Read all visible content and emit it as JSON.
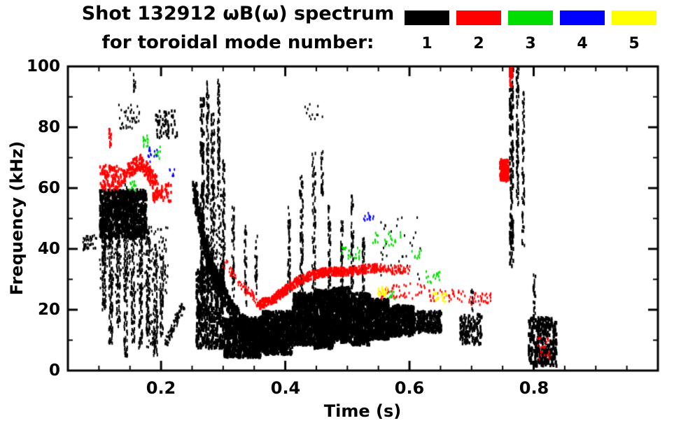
{
  "header": {
    "title": "Shot 132912 ωB(ω) spectrum",
    "subtitle": "for toroidal mode number:"
  },
  "legend": {
    "items": [
      {
        "label": "1",
        "color": "#000000"
      },
      {
        "label": "2",
        "color": "#ff0000"
      },
      {
        "label": "3",
        "color": "#00dd00"
      },
      {
        "label": "4",
        "color": "#0000ff"
      },
      {
        "label": "5",
        "color": "#ffff00"
      }
    ]
  },
  "chart_data": {
    "type": "scatter",
    "title": "Shot 132912 ωB(ω) spectrum for toroidal mode number 1-5",
    "xlabel": "Time (s)",
    "ylabel": "Frequency (kHz)",
    "xlim": [
      0.05,
      1.0
    ],
    "ylim": [
      0,
      100
    ],
    "xticks": [
      0.2,
      0.4,
      0.6,
      0.8
    ],
    "xtick_labels": [
      "0.2",
      "0.4",
      "0.6",
      "0.8"
    ],
    "x_minor_step": 0.05,
    "yticks": [
      0,
      20,
      40,
      60,
      80,
      100
    ],
    "ytick_labels": [
      "0",
      "20",
      "40",
      "60",
      "80",
      "100"
    ],
    "y_minor_step": 10,
    "grid": false,
    "legend_position": "top-right",
    "series": [
      {
        "name": "1",
        "color": "#000000"
      },
      {
        "name": "2",
        "color": "#ff0000"
      },
      {
        "name": "3",
        "color": "#00dd00"
      },
      {
        "name": "4",
        "color": "#0000ff"
      },
      {
        "name": "5",
        "color": "#ffff00"
      }
    ],
    "clusters": [
      {
        "m": 1,
        "sh": "b",
        "t": [
          0.073,
          0.095
        ],
        "f": [
          40,
          45
        ],
        "n": 50,
        "s": 2
      },
      {
        "m": 1,
        "sh": "b",
        "t": [
          0.1,
          0.175
        ],
        "f": [
          44,
          60
        ],
        "n": 800,
        "s": 3
      },
      {
        "m": 1,
        "sh": "v",
        "t": 0.107,
        "w": 0.003,
        "f": [
          20,
          50
        ],
        "n": 90,
        "s": 2
      },
      {
        "m": 1,
        "sh": "v",
        "t": 0.118,
        "w": 0.003,
        "f": [
          8,
          55
        ],
        "n": 120,
        "s": 2
      },
      {
        "m": 1,
        "sh": "v",
        "t": 0.13,
        "w": 0.003,
        "f": [
          15,
          60
        ],
        "n": 110,
        "s": 2
      },
      {
        "m": 1,
        "sh": "v",
        "t": 0.142,
        "w": 0.003,
        "f": [
          5,
          62
        ],
        "n": 130,
        "s": 2
      },
      {
        "m": 1,
        "sh": "v",
        "t": 0.154,
        "w": 0.003,
        "f": [
          10,
          58
        ],
        "n": 120,
        "s": 2
      },
      {
        "m": 1,
        "sh": "v",
        "t": 0.166,
        "w": 0.003,
        "f": [
          8,
          52
        ],
        "n": 110,
        "s": 2
      },
      {
        "m": 1,
        "sh": "v",
        "t": 0.178,
        "w": 0.003,
        "f": [
          12,
          48
        ],
        "n": 90,
        "s": 2
      },
      {
        "m": 1,
        "sh": "v",
        "t": 0.19,
        "w": 0.003,
        "f": [
          5,
          42
        ],
        "n": 80,
        "s": 2
      },
      {
        "m": 1,
        "sh": "v",
        "t": 0.2,
        "w": 0.003,
        "f": [
          12,
          38
        ],
        "n": 60,
        "s": 2
      },
      {
        "m": 1,
        "sh": "b",
        "t": [
          0.1,
          0.21
        ],
        "f": [
          25,
          48
        ],
        "n": 250,
        "s": 2
      },
      {
        "m": 1,
        "sh": "b",
        "t": [
          0.13,
          0.168
        ],
        "f": [
          80,
          88
        ],
        "n": 40,
        "s": 2
      },
      {
        "m": 1,
        "sh": "b",
        "t": [
          0.19,
          0.225
        ],
        "f": [
          77,
          86
        ],
        "n": 60,
        "s": 2.5
      },
      {
        "m": 1,
        "sh": "v",
        "t": 0.156,
        "w": 0.002,
        "f": [
          92,
          98
        ],
        "n": 10,
        "s": 2
      },
      {
        "m": 1,
        "sh": "c",
        "pts": [
          [
            0.205,
            9
          ],
          [
            0.235,
            22
          ]
        ],
        "n": 100,
        "jf": 1.5,
        "s": 2
      },
      {
        "m": 1,
        "sh": "b",
        "t": [
          0.175,
          0.195
        ],
        "f": [
          8,
          20
        ],
        "n": 60,
        "s": 2
      },
      {
        "m": 1,
        "sh": "c",
        "pts": [
          [
            0.252,
            60
          ],
          [
            0.262,
            48
          ],
          [
            0.274,
            38
          ],
          [
            0.288,
            30
          ],
          [
            0.305,
            23
          ],
          [
            0.325,
            17
          ],
          [
            0.345,
            12
          ],
          [
            0.365,
            10
          ],
          [
            0.385,
            10
          ]
        ],
        "n": 900,
        "jf": 3,
        "s": 3
      },
      {
        "m": 1,
        "sh": "b",
        "t": [
          0.255,
          0.3
        ],
        "f": [
          8,
          35
        ],
        "n": 500,
        "s": 3
      },
      {
        "m": 1,
        "sh": "b",
        "t": [
          0.3,
          0.36
        ],
        "f": [
          5,
          18
        ],
        "n": 700,
        "s": 3
      },
      {
        "m": 1,
        "sh": "b",
        "t": [
          0.36,
          0.41
        ],
        "f": [
          6,
          20
        ],
        "n": 650,
        "s": 3
      },
      {
        "m": 1,
        "sh": "b",
        "t": [
          0.41,
          0.445
        ],
        "f": [
          9,
          26
        ],
        "n": 650,
        "s": 3
      },
      {
        "m": 1,
        "sh": "b",
        "t": [
          0.445,
          0.475
        ],
        "f": [
          8,
          27
        ],
        "n": 650,
        "s": 3
      },
      {
        "m": 1,
        "sh": "b",
        "t": [
          0.475,
          0.505
        ],
        "f": [
          10,
          28
        ],
        "n": 650,
        "s": 3
      },
      {
        "m": 1,
        "sh": "b",
        "t": [
          0.505,
          0.535
        ],
        "f": [
          9,
          26
        ],
        "n": 550,
        "s": 3
      },
      {
        "m": 1,
        "sh": "b",
        "t": [
          0.535,
          0.565
        ],
        "f": [
          11,
          24
        ],
        "n": 450,
        "s": 3
      },
      {
        "m": 1,
        "sh": "b",
        "t": [
          0.565,
          0.605
        ],
        "f": [
          12,
          22
        ],
        "n": 380,
        "s": 3
      },
      {
        "m": 1,
        "sh": "b",
        "t": [
          0.605,
          0.65
        ],
        "f": [
          13,
          20
        ],
        "n": 300,
        "s": 2.5
      },
      {
        "m": 1,
        "sh": "b",
        "t": [
          0.27,
          0.3
        ],
        "f": [
          35,
          60
        ],
        "n": 120,
        "s": 2
      },
      {
        "m": 1,
        "sh": "v",
        "t": 0.265,
        "w": 0.003,
        "f": [
          20,
          90
        ],
        "n": 160,
        "s": 2.5
      },
      {
        "m": 1,
        "sh": "v",
        "t": 0.274,
        "w": 0.002,
        "f": [
          55,
          96
        ],
        "n": 90,
        "s": 2
      },
      {
        "m": 1,
        "sh": "v",
        "t": 0.282,
        "w": 0.003,
        "f": [
          30,
          85
        ],
        "n": 120,
        "s": 2
      },
      {
        "m": 1,
        "sh": "v",
        "t": 0.292,
        "w": 0.002,
        "f": [
          60,
          97
        ],
        "n": 70,
        "s": 2
      },
      {
        "m": 1,
        "sh": "v",
        "t": 0.3,
        "w": 0.002,
        "f": [
          28,
          70
        ],
        "n": 80,
        "s": 2
      },
      {
        "m": 1,
        "sh": "v",
        "t": 0.315,
        "w": 0.002,
        "f": [
          25,
          55
        ],
        "n": 50,
        "s": 2
      },
      {
        "m": 1,
        "sh": "v",
        "t": 0.335,
        "w": 0.002,
        "f": [
          22,
          48
        ],
        "n": 40,
        "s": 2
      },
      {
        "m": 1,
        "sh": "v",
        "t": 0.352,
        "w": 0.002,
        "f": [
          25,
          45
        ],
        "n": 30,
        "s": 2
      },
      {
        "m": 1,
        "sh": "v",
        "t": 0.405,
        "w": 0.002,
        "f": [
          26,
          55
        ],
        "n": 60,
        "s": 2
      },
      {
        "m": 1,
        "sh": "v",
        "t": 0.425,
        "w": 0.003,
        "f": [
          26,
          65
        ],
        "n": 90,
        "s": 2
      },
      {
        "m": 1,
        "sh": "v",
        "t": 0.445,
        "w": 0.003,
        "f": [
          26,
          72
        ],
        "n": 80,
        "s": 2
      },
      {
        "m": 1,
        "sh": "v",
        "t": 0.458,
        "w": 0.002,
        "f": [
          58,
          74
        ],
        "n": 30,
        "s": 2
      },
      {
        "m": 1,
        "sh": "v",
        "t": 0.47,
        "w": 0.002,
        "f": [
          26,
          55
        ],
        "n": 60,
        "s": 2
      },
      {
        "m": 1,
        "sh": "v",
        "t": 0.49,
        "w": 0.002,
        "f": [
          26,
          50
        ],
        "n": 50,
        "s": 2
      },
      {
        "m": 1,
        "sh": "v",
        "t": 0.507,
        "w": 0.002,
        "f": [
          26,
          58
        ],
        "n": 60,
        "s": 2
      },
      {
        "m": 1,
        "sh": "v",
        "t": 0.525,
        "w": 0.002,
        "f": [
          26,
          45
        ],
        "n": 40,
        "s": 2
      },
      {
        "m": 1,
        "sh": "b",
        "t": [
          0.43,
          0.46
        ],
        "f": [
          83,
          88
        ],
        "n": 12,
        "s": 2
      },
      {
        "m": 1,
        "sh": "b",
        "t": [
          0.55,
          0.62
        ],
        "f": [
          30,
          52
        ],
        "n": 35,
        "s": 2
      },
      {
        "m": 1,
        "sh": "b",
        "t": [
          0.68,
          0.715
        ],
        "f": [
          9,
          19
        ],
        "n": 160,
        "s": 2.5
      },
      {
        "m": 1,
        "sh": "v",
        "t": 0.7,
        "w": 0.002,
        "f": [
          20,
          27
        ],
        "n": 12,
        "s": 2
      },
      {
        "m": 1,
        "sh": "v",
        "t": 0.763,
        "w": 0.003,
        "f": [
          35,
          100
        ],
        "n": 140,
        "s": 2.5
      },
      {
        "m": 1,
        "sh": "v",
        "t": 0.773,
        "w": 0.002,
        "f": [
          55,
          100
        ],
        "n": 100,
        "s": 2
      },
      {
        "m": 1,
        "sh": "v",
        "t": 0.782,
        "w": 0.002,
        "f": [
          40,
          92
        ],
        "n": 70,
        "s": 2
      },
      {
        "m": 1,
        "sh": "b",
        "t": [
          0.79,
          0.835
        ],
        "f": [
          2,
          18
        ],
        "n": 320,
        "s": 3
      },
      {
        "m": 1,
        "sh": "v",
        "t": 0.8,
        "w": 0.002,
        "f": [
          18,
          32
        ],
        "n": 25,
        "s": 2
      },
      {
        "m": 2,
        "sh": "b",
        "t": [
          0.1,
          0.135
        ],
        "f": [
          60,
          68
        ],
        "n": 100,
        "s": 2.5
      },
      {
        "m": 2,
        "sh": "c",
        "pts": [
          [
            0.135,
            64
          ],
          [
            0.15,
            67
          ],
          [
            0.165,
            69
          ],
          [
            0.178,
            66
          ],
          [
            0.19,
            62
          ]
        ],
        "n": 220,
        "jf": 2.5,
        "s": 2.5
      },
      {
        "m": 2,
        "sh": "v",
        "t": 0.117,
        "w": 0.002,
        "f": [
          74,
          80
        ],
        "n": 15,
        "s": 2
      },
      {
        "m": 2,
        "sh": "b",
        "t": [
          0.185,
          0.215
        ],
        "f": [
          56,
          62
        ],
        "n": 60,
        "s": 2.5
      },
      {
        "m": 2,
        "sh": "c",
        "pts": [
          [
            0.3,
            36
          ],
          [
            0.33,
            28
          ],
          [
            0.355,
            23
          ]
        ],
        "n": 80,
        "jf": 1.5,
        "s": 2
      },
      {
        "m": 2,
        "sh": "c",
        "pts": [
          [
            0.355,
            22
          ],
          [
            0.38,
            24
          ],
          [
            0.4,
            27
          ],
          [
            0.42,
            30
          ],
          [
            0.445,
            32
          ],
          [
            0.47,
            33
          ],
          [
            0.5,
            33
          ],
          [
            0.53,
            34
          ],
          [
            0.555,
            34
          ]
        ],
        "n": 600,
        "jf": 1.4,
        "s": 2.5
      },
      {
        "m": 2,
        "sh": "b",
        "t": [
          0.555,
          0.6
        ],
        "f": [
          32,
          35
        ],
        "n": 60,
        "s": 2
      },
      {
        "m": 2,
        "sh": "b",
        "t": [
          0.55,
          0.625
        ],
        "f": [
          24,
          29
        ],
        "n": 50,
        "s": 2
      },
      {
        "m": 2,
        "sh": "b",
        "t": [
          0.63,
          0.69
        ],
        "f": [
          23,
          27
        ],
        "n": 40,
        "s": 2
      },
      {
        "m": 2,
        "sh": "b",
        "t": [
          0.695,
          0.73
        ],
        "f": [
          22,
          26
        ],
        "n": 35,
        "s": 2
      },
      {
        "m": 2,
        "sh": "b",
        "t": [
          0.744,
          0.758
        ],
        "f": [
          63,
          70
        ],
        "n": 110,
        "s": 3
      },
      {
        "m": 2,
        "sh": "v",
        "t": 0.762,
        "w": 0.002,
        "f": [
          94,
          100
        ],
        "n": 25,
        "s": 2.5
      },
      {
        "m": 2,
        "sh": "b",
        "t": [
          0.805,
          0.825
        ],
        "f": [
          4,
          12
        ],
        "n": 25,
        "s": 2
      },
      {
        "m": 3,
        "sh": "b",
        "t": [
          0.148,
          0.158
        ],
        "f": [
          59,
          63
        ],
        "n": 12,
        "s": 2
      },
      {
        "m": 3,
        "sh": "b",
        "t": [
          0.165,
          0.178
        ],
        "f": [
          74,
          78
        ],
        "n": 14,
        "s": 2
      },
      {
        "m": 3,
        "sh": "b",
        "t": [
          0.188,
          0.198
        ],
        "f": [
          70,
          74
        ],
        "n": 8,
        "s": 2
      },
      {
        "m": 3,
        "sh": "b",
        "t": [
          0.49,
          0.52
        ],
        "f": [
          37,
          41
        ],
        "n": 22,
        "s": 2
      },
      {
        "m": 3,
        "sh": "b",
        "t": [
          0.54,
          0.585
        ],
        "f": [
          41,
          46
        ],
        "n": 26,
        "s": 2
      },
      {
        "m": 3,
        "sh": "b",
        "t": [
          0.6,
          0.62
        ],
        "f": [
          37,
          40
        ],
        "n": 10,
        "s": 2
      },
      {
        "m": 3,
        "sh": "b",
        "t": [
          0.625,
          0.65
        ],
        "f": [
          29,
          33
        ],
        "n": 16,
        "s": 2
      },
      {
        "m": 3,
        "sh": "b",
        "t": [
          0.565,
          0.578
        ],
        "f": [
          24,
          27
        ],
        "n": 8,
        "s": 2
      },
      {
        "m": 4,
        "sh": "b",
        "t": [
          0.178,
          0.194
        ],
        "f": [
          69,
          74
        ],
        "n": 16,
        "s": 2
      },
      {
        "m": 4,
        "sh": "b",
        "t": [
          0.525,
          0.542
        ],
        "f": [
          49,
          53
        ],
        "n": 12,
        "s": 2
      },
      {
        "m": 4,
        "sh": "b",
        "t": [
          0.212,
          0.222
        ],
        "f": [
          64,
          67
        ],
        "n": 6,
        "s": 2
      },
      {
        "m": 5,
        "sh": "b",
        "t": [
          0.545,
          0.562
        ],
        "f": [
          25,
          28
        ],
        "n": 16,
        "s": 2.5
      },
      {
        "m": 5,
        "sh": "b",
        "t": [
          0.635,
          0.658
        ],
        "f": [
          23,
          26
        ],
        "n": 12,
        "s": 2.5
      }
    ]
  }
}
